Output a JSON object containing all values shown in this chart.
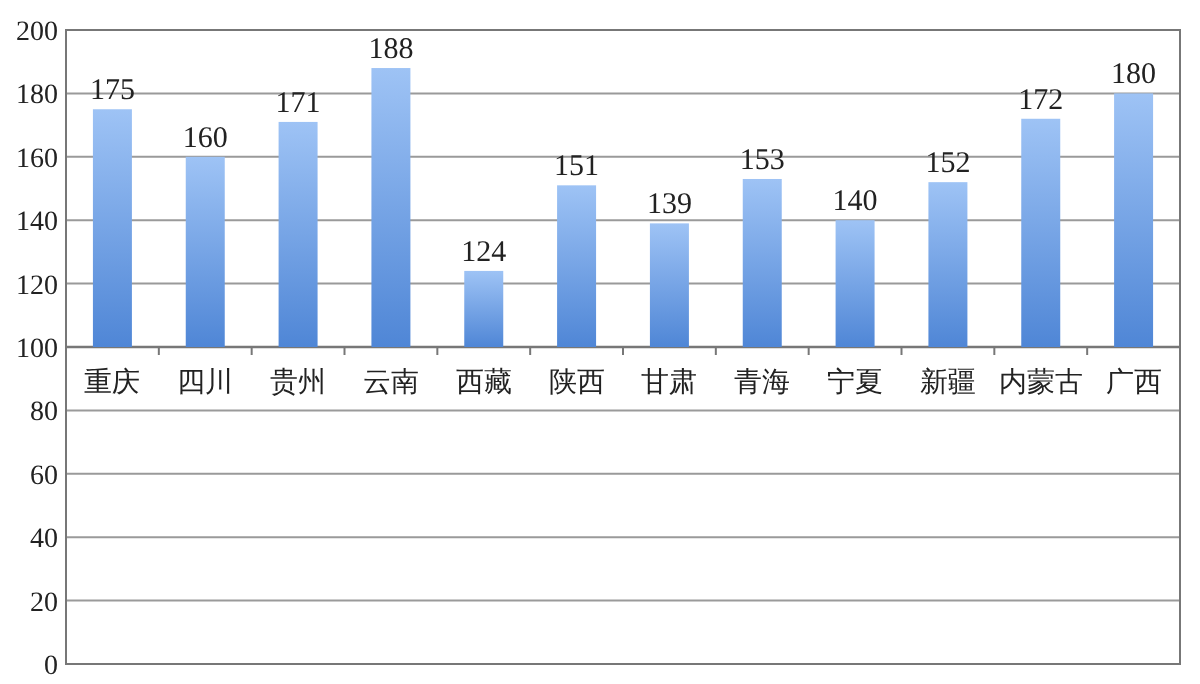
{
  "chart_data": {
    "type": "bar",
    "categories": [
      "重庆",
      "四川",
      "贵州",
      "云南",
      "西藏",
      "陕西",
      "甘肃",
      "青海",
      "宁夏",
      "新疆",
      "内蒙古",
      "广西"
    ],
    "base": [
      100,
      100,
      100,
      100,
      100,
      100,
      100,
      100,
      100,
      100,
      100,
      100
    ],
    "values": [
      75,
      60,
      71,
      88,
      24,
      51,
      39,
      53,
      40,
      52,
      72,
      80
    ],
    "value_labels": [
      "175",
      "160",
      "171",
      "188",
      "124",
      "151",
      "139",
      "153",
      "140",
      "152",
      "172",
      "180"
    ],
    "color": "#4f86d6",
    "ylim": [
      0,
      200
    ],
    "yticks": [
      0,
      20,
      40,
      60,
      80,
      100,
      120,
      140,
      160,
      180,
      200
    ],
    "grid": "y"
  }
}
